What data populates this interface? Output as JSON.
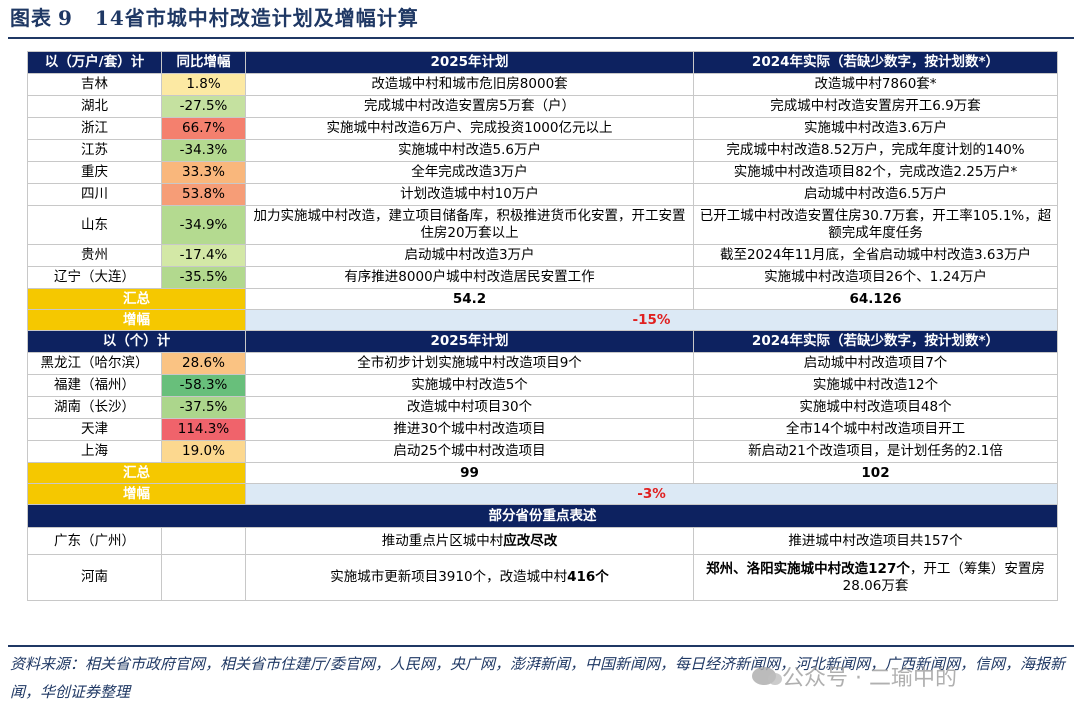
{
  "figure": {
    "label": "图表",
    "number": "9",
    "title": "14省市城中村改造计划及增幅计算"
  },
  "section1": {
    "headers": [
      "以（万户/套）计",
      "同比增幅",
      "2025年计划",
      "2024年实际（若缺少数字，按计划数*）"
    ],
    "rows": [
      {
        "region": "吉林",
        "growth": "1.8%",
        "plan": "改造城中村和城市危旧房8000套",
        "actual": "改造城中村7860套*",
        "color": "#fce9a3"
      },
      {
        "region": "湖北",
        "growth": "-27.5%",
        "plan": "完成城中村改造安置房5万套（户）",
        "actual": "完成城中村改造安置房开工6.9万套",
        "color": "#c5e1a0"
      },
      {
        "region": "浙江",
        "growth": "66.7%",
        "plan": "实施城中村改造6万户、完成投资1000亿元以上",
        "actual": "实施城中村改造3.6万户",
        "color": "#f4806e"
      },
      {
        "region": "江苏",
        "growth": "-34.3%",
        "plan": "实施城中村改造5.6万户",
        "actual": "完成城中村改造8.52万户，完成年度计划的140%",
        "color": "#b4da90"
      },
      {
        "region": "重庆",
        "growth": "33.3%",
        "plan": "全年完成改造3万户",
        "actual": "实施城中村改造项目82个，完成改造2.25万户*",
        "color": "#f9b77c"
      },
      {
        "region": "四川",
        "growth": "53.8%",
        "plan": "计划改造城中村10万户",
        "actual": "启动城中村改造6.5万户",
        "color": "#f69d77"
      },
      {
        "region": "山东",
        "growth": "-34.9%",
        "plan": "加力实施城中村改造，建立项目储备库，积极推进货币化安置，开工安置住房20万套以上",
        "actual": "已开工城中村改造安置住房30.7万套，开工率105.1%，超额完成年度任务",
        "color": "#b4da90"
      },
      {
        "region": "贵州",
        "growth": "-17.4%",
        "plan": "启动城中村改造3万户",
        "actual": "截至2024年11月底，全省启动城中村改造3.63万户",
        "color": "#d3e8a6"
      },
      {
        "region": "辽宁（大连）",
        "growth": "-35.5%",
        "plan": "有序推进8000户城中村改造居民安置工作",
        "actual": "实施城中村改造项目26个、1.24万户",
        "color": "#b2d98e"
      }
    ],
    "total_label": "汇总",
    "total_plan": "54.2",
    "total_actual": "64.126",
    "growth_label": "增幅",
    "growth_value": "-15%"
  },
  "section2": {
    "headers": [
      "以（个）计",
      "2025年计划",
      "2024年实际（若缺少数字，按计划数*）"
    ],
    "rows": [
      {
        "region": "黑龙江（哈尔滨）",
        "growth": "28.6%",
        "plan": "全市初步计划实施城中村改造项目9个",
        "actual": "启动城中村改造项目7个",
        "color": "#fac383"
      },
      {
        "region": "福建（福州）",
        "growth": "-58.3%",
        "plan": "实施城中村改造5个",
        "actual": "实施城中村改造12个",
        "color": "#68bf7b"
      },
      {
        "region": "湖南（长沙）",
        "growth": "-37.5%",
        "plan": "改造城中村项目30个",
        "actual": "实施城中村改造项目48个",
        "color": "#acd68c"
      },
      {
        "region": "天津",
        "growth": "114.3%",
        "plan": "推进30个城中村改造项目",
        "actual": "全市14个城中村改造项目开工",
        "color": "#f0636b"
      },
      {
        "region": "上海",
        "growth": "19.0%",
        "plan": "启动25个城中村改造项目",
        "actual": "新启动21个改造项目，是计划任务的2.1倍",
        "color": "#fcd88f"
      }
    ],
    "total_label": "汇总",
    "total_plan": "99",
    "total_actual": "102",
    "growth_label": "增幅",
    "growth_value": "-3%"
  },
  "section3": {
    "header": "部分省份重点表述",
    "guangdong": {
      "region": "广东（广州）",
      "plan_pre": "推动重点片区城中村",
      "plan_bold": "应改尽改",
      "actual": "推进城中村改造项目共157个"
    },
    "henan": {
      "region": "河南",
      "plan_pre": "实施城市更新项目3910个，改造城中村",
      "plan_bold": "416个",
      "actual_bold": "郑州、洛阳实施城中村改造127个",
      "actual_post": "，开工（筹集）安置房28.06万套"
    }
  },
  "source": {
    "text": "资料来源：相关省市政府官网，相关省市住建厅/委官网，人民网，央广网，澎湃新闻，中国新闻网，每日经济新闻网，河北新闻网，广西新闻网，信网，海报新闻，华创证券整理"
  },
  "watermark": {
    "text": "公众号 · 二瑜中的"
  }
}
